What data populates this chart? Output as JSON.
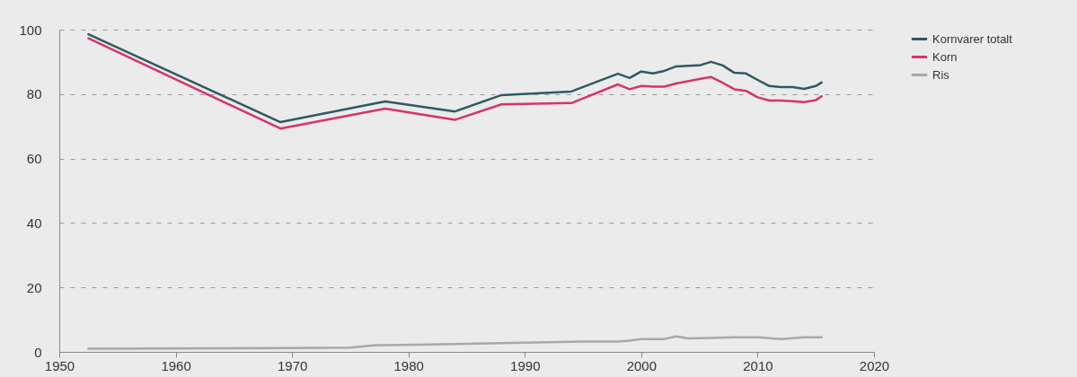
{
  "chart_data": {
    "type": "line",
    "xlim": [
      1950,
      2020
    ],
    "xticks": [
      1950,
      1960,
      1970,
      1980,
      1990,
      2000,
      2010,
      2020
    ],
    "ylim": [
      0,
      100
    ],
    "yticks": [
      0,
      20,
      40,
      60,
      80,
      100
    ],
    "grid": "y",
    "legend": "top right",
    "line_style": "solid",
    "marker": "none",
    "series": [
      {
        "name": "Kornvarer totalt",
        "color": "#2f5a62",
        "x": [
          1952.5,
          1969,
          1978,
          1984,
          1988,
          1994,
          1998,
          1999,
          2000,
          2001,
          2002,
          2003,
          2005,
          2006,
          2007,
          2008,
          2009,
          2010,
          2011,
          2012,
          2013,
          2014,
          2015,
          2015.5
        ],
        "values": [
          98.6,
          71.3,
          77.7,
          74.6,
          79.7,
          80.8,
          86.3,
          85,
          87,
          86.4,
          87.2,
          88.6,
          88.9,
          90,
          88.9,
          86.6,
          86.4,
          84.4,
          82.5,
          82.2,
          82.2,
          81.6,
          82.5,
          83.6
        ]
      },
      {
        "name": "Korn",
        "color": "#d6336c",
        "x": [
          1952.5,
          1969,
          1978,
          1984,
          1988,
          1994,
          1998,
          1999,
          2000,
          2001,
          2002,
          2003,
          2005,
          2006,
          2007,
          2008,
          2009,
          2010,
          2011,
          2012,
          2013,
          2014,
          2015,
          2015.5
        ],
        "values": [
          97.3,
          69.3,
          75.5,
          72,
          76.8,
          77.2,
          83,
          81.5,
          82.5,
          82.3,
          82.3,
          83.3,
          84.7,
          85.3,
          83.5,
          81.5,
          81,
          79,
          78,
          78,
          77.8,
          77.5,
          78.1,
          79.3
        ]
      },
      {
        "name": "Ris",
        "color": "#a8a8a8",
        "x": [
          1952.5,
          1970,
          1975,
          1977,
          1985,
          1995,
          1998,
          1999,
          2000,
          2002,
          2003,
          2004,
          2006,
          2008,
          2010,
          2012,
          2014,
          2015.5
        ],
        "values": [
          1,
          1.2,
          1.3,
          2,
          2.5,
          3.2,
          3.2,
          3.5,
          4,
          4,
          4.8,
          4.2,
          4.3,
          4.5,
          4.5,
          4,
          4.5,
          4.5
        ]
      }
    ]
  }
}
